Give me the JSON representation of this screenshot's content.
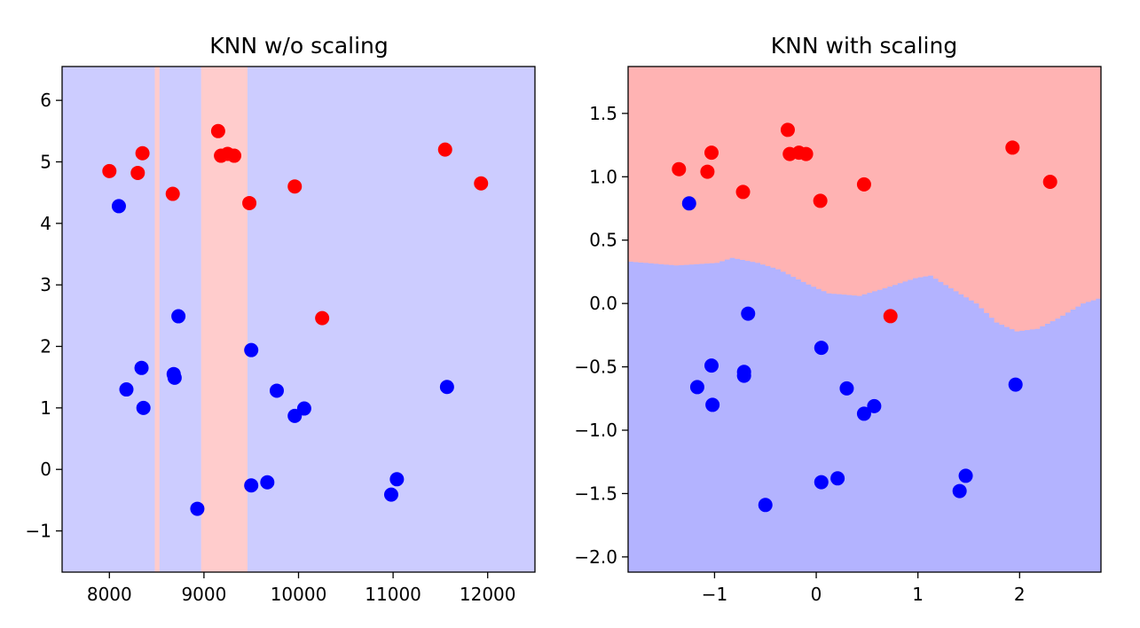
{
  "chart_data": [
    {
      "type": "scatter",
      "title": "KNN w/o scaling",
      "xlabel": "",
      "ylabel": "",
      "xlim": [
        7500,
        12500
      ],
      "ylim": [
        -1.67,
        6.55
      ],
      "xticks": [
        8000,
        9000,
        10000,
        11000,
        12000
      ],
      "xtick_labels": [
        "8000",
        "9000",
        "10000",
        "11000",
        "12000"
      ],
      "yticks": [
        -1,
        0,
        1,
        2,
        3,
        4,
        5,
        6
      ],
      "ytick_labels": [
        "−1",
        "0",
        "1",
        "2",
        "3",
        "4",
        "5",
        "6"
      ],
      "grid": false,
      "background_color": "#ccccff",
      "decision_regions": [
        {
          "class": "red",
          "x_from": 8480,
          "x_to": 8530,
          "color": "#ffcccc"
        },
        {
          "class": "red",
          "x_from": 8970,
          "x_to": 9460,
          "color": "#ffcccc"
        }
      ],
      "series": [
        {
          "color": "#ff0000",
          "points": [
            [
              8000,
              4.85
            ],
            [
              8300,
              4.82
            ],
            [
              8350,
              5.14
            ],
            [
              8670,
              4.48
            ],
            [
              9150,
              5.5
            ],
            [
              9180,
              5.1
            ],
            [
              9250,
              5.13
            ],
            [
              9320,
              5.1
            ],
            [
              9480,
              4.33
            ],
            [
              9960,
              4.6
            ],
            [
              10250,
              2.46
            ],
            [
              11550,
              5.2
            ],
            [
              11930,
              4.65
            ]
          ]
        },
        {
          "color": "#0000ff",
          "points": [
            [
              8100,
              4.28
            ],
            [
              8180,
              1.3
            ],
            [
              8340,
              1.65
            ],
            [
              8360,
              1.0
            ],
            [
              8680,
              1.55
            ],
            [
              8690,
              1.49
            ],
            [
              8730,
              2.49
            ],
            [
              8930,
              -0.64
            ],
            [
              9500,
              1.94
            ],
            [
              9500,
              -0.26
            ],
            [
              9670,
              -0.21
            ],
            [
              9770,
              1.28
            ],
            [
              9960,
              0.87
            ],
            [
              10060,
              0.99
            ],
            [
              10980,
              -0.41
            ],
            [
              11040,
              -0.16
            ],
            [
              11570,
              1.34
            ]
          ]
        }
      ]
    },
    {
      "type": "scatter",
      "title": "KNN with scaling",
      "xlabel": "",
      "ylabel": "",
      "xlim": [
        -1.85,
        2.8
      ],
      "ylim": [
        -2.12,
        1.87
      ],
      "xticks": [
        -1,
        0,
        1,
        2
      ],
      "xtick_labels": [
        "−1",
        "0",
        "1",
        "2"
      ],
      "yticks": [
        -2.0,
        -1.5,
        -1.0,
        -0.5,
        0.0,
        0.5,
        1.0,
        1.5
      ],
      "ytick_labels": [
        "−2.0",
        "−1.5",
        "−1.0",
        "−0.5",
        "0.0",
        "0.5",
        "1.0",
        "1.5"
      ],
      "grid": false,
      "region_colors": {
        "upper": "#ffb3b3",
        "lower": "#b3b3ff"
      },
      "decision_boundary": [
        [
          -1.85,
          0.33
        ],
        [
          -1.4,
          0.3
        ],
        [
          -1.0,
          0.32
        ],
        [
          -0.85,
          0.36
        ],
        [
          -0.6,
          0.32
        ],
        [
          -0.4,
          0.27
        ],
        [
          -0.1,
          0.15
        ],
        [
          0.1,
          0.08
        ],
        [
          0.4,
          0.06
        ],
        [
          0.65,
          0.12
        ],
        [
          0.95,
          0.2
        ],
        [
          1.1,
          0.22
        ],
        [
          1.3,
          0.12
        ],
        [
          1.55,
          0.0
        ],
        [
          1.75,
          -0.15
        ],
        [
          1.95,
          -0.22
        ],
        [
          2.15,
          -0.2
        ],
        [
          2.35,
          -0.12
        ],
        [
          2.6,
          0.0
        ],
        [
          2.8,
          0.05
        ]
      ],
      "series": [
        {
          "color": "#ff0000",
          "points": [
            [
              -1.35,
              1.06
            ],
            [
              -1.07,
              1.04
            ],
            [
              -1.03,
              1.19
            ],
            [
              -0.72,
              0.88
            ],
            [
              -0.28,
              1.37
            ],
            [
              -0.26,
              1.18
            ],
            [
              -0.17,
              1.19
            ],
            [
              -0.1,
              1.18
            ],
            [
              0.04,
              0.81
            ],
            [
              0.47,
              0.94
            ],
            [
              0.73,
              -0.1
            ],
            [
              1.93,
              1.23
            ],
            [
              2.3,
              0.96
            ]
          ]
        },
        {
          "color": "#0000ff",
          "points": [
            [
              -1.25,
              0.79
            ],
            [
              -1.17,
              -0.66
            ],
            [
              -1.03,
              -0.49
            ],
            [
              -1.02,
              -0.8
            ],
            [
              -0.71,
              -0.54
            ],
            [
              -0.71,
              -0.57
            ],
            [
              -0.67,
              -0.08
            ],
            [
              -0.5,
              -1.59
            ],
            [
              0.05,
              -0.35
            ],
            [
              0.05,
              -1.41
            ],
            [
              0.21,
              -1.38
            ],
            [
              0.3,
              -0.67
            ],
            [
              0.47,
              -0.87
            ],
            [
              0.57,
              -0.81
            ],
            [
              1.41,
              -1.48
            ],
            [
              1.47,
              -1.36
            ],
            [
              1.96,
              -0.64
            ]
          ]
        }
      ]
    }
  ]
}
